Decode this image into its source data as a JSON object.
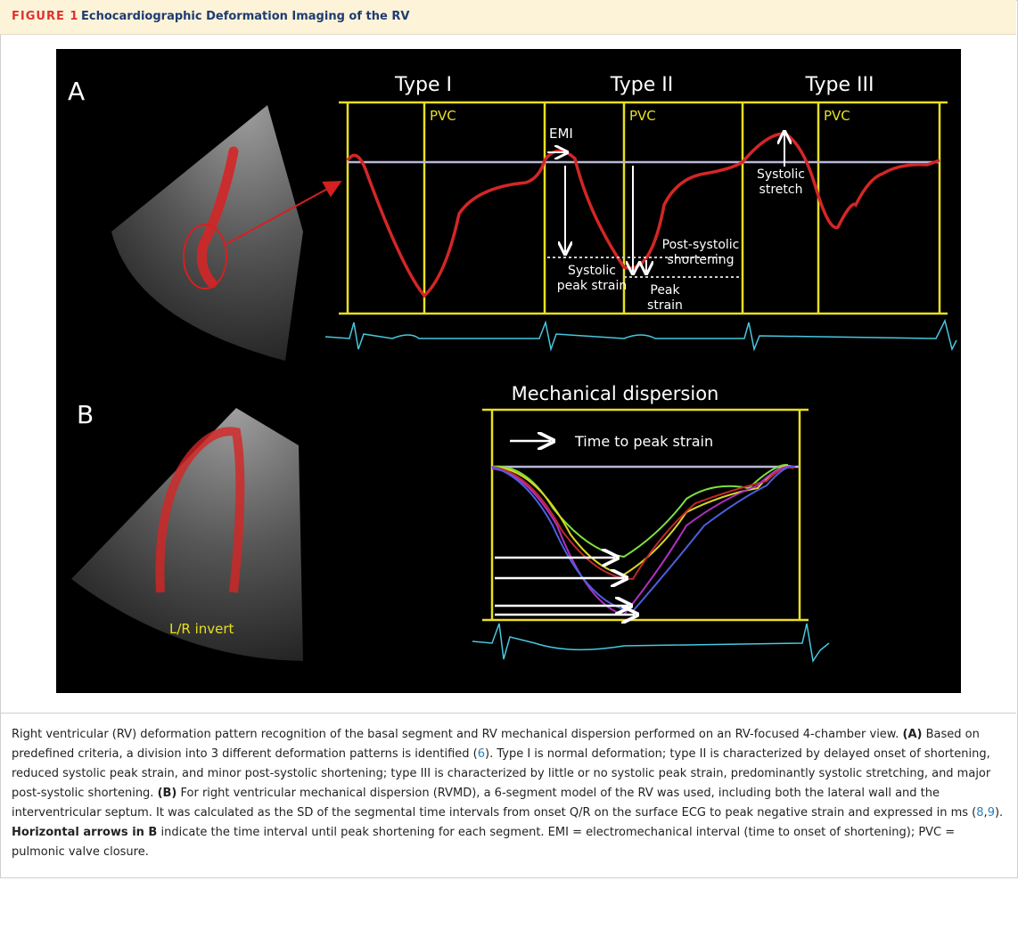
{
  "header": {
    "figure_label": "FIGURE 1",
    "title": "Echocardiographic Deformation Imaging of the RV"
  },
  "panel_a": {
    "label": "A",
    "types": [
      "Type I",
      "Type II",
      "Type III"
    ],
    "pvc": [
      "PVC",
      "PVC",
      "PVC"
    ],
    "emi": "EMI",
    "systolic_peak_strain": [
      "Systolic",
      "peak strain"
    ],
    "post_systolic_shortening": [
      "Post-systolic",
      "shortening"
    ],
    "peak_strain": [
      "Peak",
      "strain"
    ],
    "systolic_stretch": [
      "Systolic",
      "stretch"
    ]
  },
  "panel_b": {
    "label": "B",
    "title": "Mechanical dispersion",
    "legend": "Time to peak strain",
    "image_note": "L/R invert"
  },
  "caption": {
    "segments": [
      {
        "text": "Right ventricular (RV) deformation pattern recognition of the basal segment and RV mechanical dispersion performed on an RV-focused 4-chamber view. "
      },
      {
        "text": "(A)",
        "bold": true
      },
      {
        "text": " Based on predefined criteria, a division into 3 different deformation patterns is identified ("
      },
      {
        "text": "6",
        "link": true
      },
      {
        "text": "). Type I is normal deformation; type II is characterized by delayed onset of shortening, reduced systolic peak strain, and minor post-systolic shortening; type III is characterized by little or no systolic peak strain, predominantly systolic stretching, and major post-systolic shortening. "
      },
      {
        "text": "(B)",
        "bold": true
      },
      {
        "text": " For right ventricular mechanical dispersion (RVMD), a 6-segment model of the RV was used, including both the lateral wall and the interventricular septum. It was calculated as the SD of the segmental time intervals from onset Q/R on the surface ECG to peak negative strain and expressed in ms ("
      },
      {
        "text": "8",
        "link": true
      },
      {
        "text": ","
      },
      {
        "text": "9",
        "link": true
      },
      {
        "text": "). "
      },
      {
        "text": "Horizontal arrows in B",
        "bold": true
      },
      {
        "text": " indicate the time interval until peak shortening for each segment. EMI = electromechanical interval (time to onset of shortening); PVC = pulmonic valve closure."
      }
    ]
  }
}
